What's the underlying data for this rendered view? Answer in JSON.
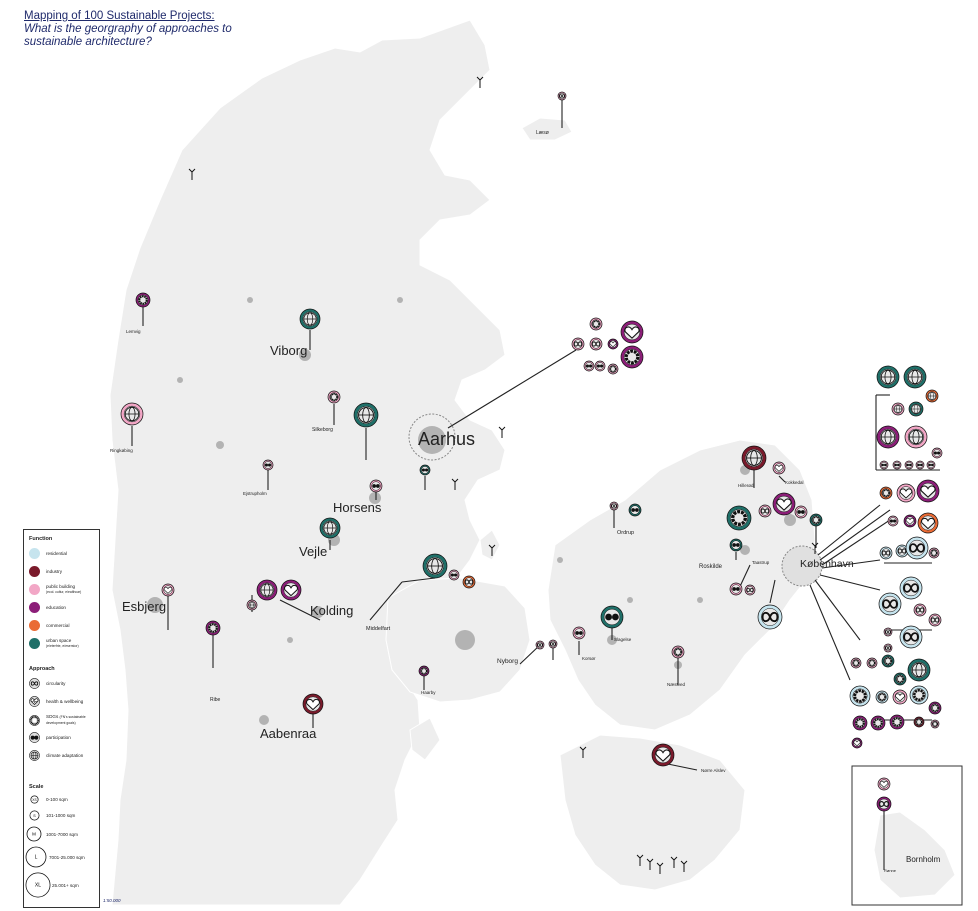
{
  "title": {
    "line1": "Mapping of 100 Sustainable Projects:",
    "line2": "What is the georgraphy of approaches to",
    "line3": "sustainable architecture?"
  },
  "colors": {
    "land": "#eeeeee",
    "urban": "#b3b3b3",
    "residential": "#c6e4ee",
    "industry": "#7a1a2b",
    "public_building": "#f2a7c6",
    "education": "#8c1e78",
    "commercial": "#ea6b35",
    "urban_space": "#1f6f68",
    "title": "#1f2a6b"
  },
  "legend": {
    "function_header": "Function",
    "functions": [
      {
        "key": "residential",
        "label": "residential"
      },
      {
        "key": "industry",
        "label": "industry"
      },
      {
        "key": "public_building",
        "label": "public building",
        "sub": "(ecol. cultur, e/ealthcar)"
      },
      {
        "key": "education",
        "label": "education"
      },
      {
        "key": "commercial",
        "label": "commercial"
      },
      {
        "key": "urban_space",
        "label": "urban space",
        "sub": "(e/eterfrie, e/eserstor)"
      }
    ],
    "approach_header": "Approach",
    "approaches": [
      {
        "icon": "infinity-icon",
        "label": "circularity"
      },
      {
        "icon": "heart-pulse-icon",
        "label": "health & wellbeing"
      },
      {
        "icon": "sdg-wheel-icon",
        "label": "SDGs",
        "sub": "(FN's sustainable development goals)"
      },
      {
        "icon": "participation-icon",
        "label": "participation"
      },
      {
        "icon": "globe-icon",
        "label": "climate adaptation"
      }
    ],
    "scale_header": "Scale",
    "scales": [
      {
        "mark": "XS",
        "label": "0-100 sqm"
      },
      {
        "mark": "S",
        "label": "101-1000 sqm"
      },
      {
        "mark": "M",
        "label": "1001-7000 sqm"
      },
      {
        "mark": "L",
        "label": "7001-25.000 sqm"
      },
      {
        "mark": "XL",
        "label": "25.001+ sqm"
      }
    ]
  },
  "scale_note": "1:50.000",
  "cities_large": [
    "Aarhus",
    "København",
    "Viborg",
    "Horsens",
    "Vejle",
    "Esbjerg",
    "Kolding",
    "Aabenraa"
  ],
  "cities_small": [
    "Læsø",
    "Lemvig",
    "Ringkøbing",
    "Silkeborg",
    "Ejstrupholm",
    "Ribe",
    "Middelfart",
    "Haarby",
    "Nyborg",
    "Korsør",
    "Slagelse",
    "Ordrup",
    "Næstved",
    "Nørre Alslev",
    "Hillerød",
    "Kokkedal",
    "Roskilde",
    "Taastrup",
    "Bornholm",
    "Rønne"
  ]
}
